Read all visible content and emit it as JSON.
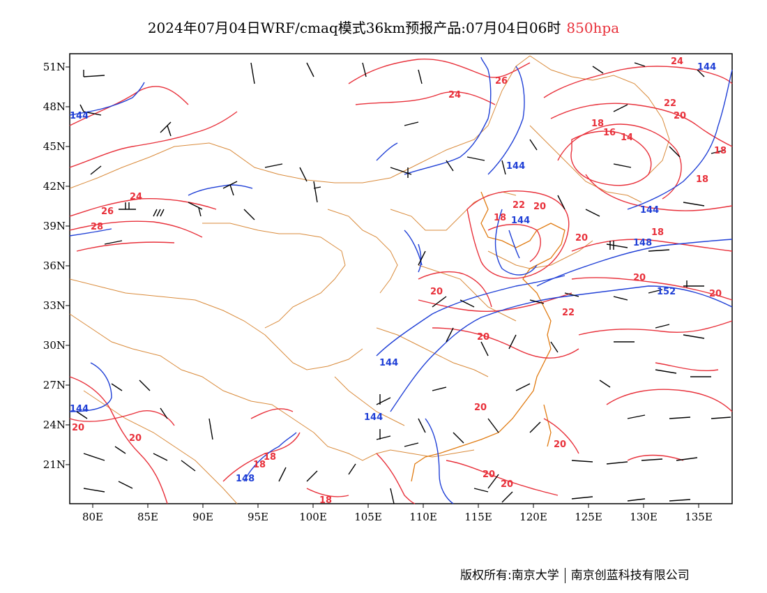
{
  "title": {
    "main": "2024年07月04日WRF/cmaq模式36km预报产品:07月04日06时",
    "level": "850hpa"
  },
  "colors": {
    "temperature_contour": "#e8303a",
    "geopotential_contour": "#1f3fd6",
    "border": "#d98a3a",
    "coast": "#e07a10",
    "wind_barb": "#000000"
  },
  "axes": {
    "lat_labels": [
      "51N",
      "48N",
      "45N",
      "42N",
      "39N",
      "36N",
      "33N",
      "30N",
      "27N",
      "24N",
      "21N"
    ],
    "lon_labels": [
      "80E",
      "85E",
      "90E",
      "95E",
      "100E",
      "105E",
      "110E",
      "115E",
      "120E",
      "125E",
      "130E",
      "135E"
    ]
  },
  "contour_labels": {
    "temperature": [
      "24",
      "26",
      "28",
      "24",
      "26",
      "20",
      "18",
      "22",
      "20",
      "18",
      "16",
      "14",
      "18",
      "18",
      "18",
      "24",
      "22",
      "20",
      "20",
      "22",
      "20",
      "20",
      "20",
      "20",
      "20",
      "20",
      "20",
      "18",
      "18",
      "18",
      "20",
      "20"
    ],
    "geopotential": [
      "144",
      "144",
      "144",
      "144",
      "148",
      "144",
      "144",
      "144",
      "148",
      "152",
      "144"
    ]
  },
  "copyright": {
    "left": "版权所有:南京大学",
    "right": "南京创蓝科技有限公司"
  }
}
